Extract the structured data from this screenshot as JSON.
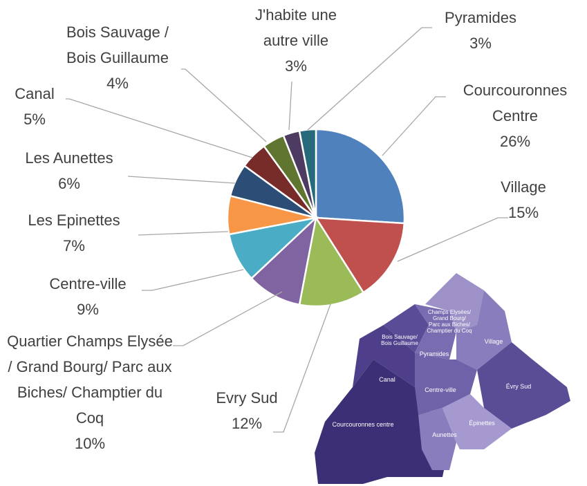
{
  "chart_data": {
    "type": "pie",
    "categories": [
      "Courcouronnes Centre",
      "Village",
      "Evry Sud",
      "Quartier Champs Elysée / Grand Bourg/ Parc aux Biches/ Champtier du Coq",
      "Centre-ville",
      "Les Epinettes",
      "Les Aunettes",
      "Canal",
      "Bois Sauvage / Bois Guillaume",
      "J'habite une autre ville",
      "Pyramides"
    ],
    "values": [
      26,
      15,
      12,
      10,
      9,
      7,
      6,
      5,
      4,
      3,
      3
    ],
    "value_labels": [
      "26%",
      "15%",
      "12%",
      "10%",
      "9%",
      "7%",
      "6%",
      "5%",
      "4%",
      "3%",
      "3%"
    ],
    "colors": [
      "#4f81bd",
      "#c0504d",
      "#9bbb59",
      "#8064a2",
      "#4bacc6",
      "#f79646",
      "#2c4d75",
      "#772c2a",
      "#5f7530",
      "#4d3b62",
      "#276a7c"
    ]
  },
  "map": {
    "labels": [
      "Champs Elysées/ Grand Bourg/ Parc aux Biches/ Champtier du Coq",
      "Bois Sauvage/ Bois Guillaume",
      "Pyramides",
      "Village",
      "Canal",
      "Évry Sud",
      "Centre-ville",
      "Courcouronnes centre",
      "Aunettes",
      "Épinettes"
    ]
  }
}
